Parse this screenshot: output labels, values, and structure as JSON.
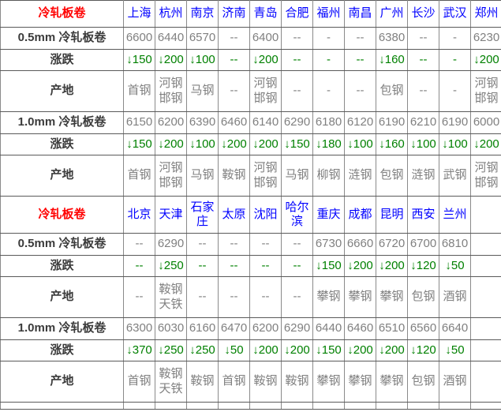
{
  "colors": {
    "section_title_red": "#ff0000",
    "city_link_blue": "#0000ff",
    "change_green": "#008000",
    "value_gray": "#808080"
  },
  "sections": [
    {
      "title": "冷轧板卷",
      "cities": [
        "上海",
        "杭州",
        "南京",
        "济南",
        "青岛",
        "合肥",
        "福州",
        "南昌",
        "广州",
        "长沙",
        "武汉",
        "郑州"
      ],
      "rows": [
        {
          "label": "0.5mm 冷轧板卷",
          "type": "price",
          "values": [
            "6600",
            "6440",
            "6570",
            "--",
            "6400",
            "--",
            "-",
            "--",
            "6380",
            "--",
            "-",
            "6230"
          ]
        },
        {
          "label": "涨跌",
          "type": "change",
          "values": [
            "↓150",
            "↓200",
            "↓100",
            "--",
            "↓200",
            "--",
            "-",
            "--",
            "↓160",
            "--",
            "-",
            "↓200"
          ]
        },
        {
          "label": "产地",
          "type": "origin",
          "values": [
            "首钢",
            "河钢邯钢",
            "马钢",
            "--",
            "河钢邯钢",
            "--",
            "-",
            "--",
            "包钢",
            "--",
            "-",
            "河钢邯钢"
          ]
        },
        {
          "label": "1.0mm 冷轧板卷",
          "type": "price",
          "values": [
            "6150",
            "6200",
            "6390",
            "6460",
            "6140",
            "6290",
            "6180",
            "6120",
            "6190",
            "6210",
            "6190",
            "6000"
          ]
        },
        {
          "label": "涨跌",
          "type": "change",
          "values": [
            "↓150",
            "↓200",
            "↓100",
            "↓200",
            "↓200",
            "↓150",
            "↓180",
            "↓100",
            "↓160",
            "↓100",
            "↓100",
            "↓200"
          ]
        },
        {
          "label": "产地",
          "type": "origin",
          "values": [
            "首钢",
            "河钢邯钢",
            "马钢",
            "鞍钢",
            "河钢邯钢",
            "马钢",
            "柳钢",
            "涟钢",
            "包钢",
            "涟钢",
            "武钢",
            "河钢邯钢"
          ]
        }
      ]
    },
    {
      "title": "冷轧板卷",
      "cities": [
        "北京",
        "天津",
        "石家庄",
        "太原",
        "沈阳",
        "哈尔滨",
        "重庆",
        "成都",
        "昆明",
        "西安",
        "兰州",
        ""
      ],
      "rows": [
        {
          "label": "0.5mm 冷轧板卷",
          "type": "price",
          "values": [
            "--",
            "6290",
            "--",
            "--",
            "--",
            "--",
            "6730",
            "6660",
            "6720",
            "6700",
            "6810",
            ""
          ]
        },
        {
          "label": "涨跌",
          "type": "change",
          "values": [
            "--",
            "↓250",
            "--",
            "--",
            "--",
            "--",
            "↓150",
            "↓200",
            "↓200",
            "↓120",
            "↓50",
            ""
          ]
        },
        {
          "label": "产地",
          "type": "origin",
          "values": [
            "--",
            "鞍钢天铁",
            "--",
            "--",
            "--",
            "--",
            "攀钢",
            "攀钢",
            "攀钢",
            "包钢",
            "酒钢",
            ""
          ]
        },
        {
          "label": "1.0mm 冷轧板卷",
          "type": "price",
          "values": [
            "6300",
            "6030",
            "6160",
            "6470",
            "6200",
            "6290",
            "6440",
            "6460",
            "6510",
            "6560",
            "6640",
            ""
          ]
        },
        {
          "label": "涨跌",
          "type": "change",
          "values": [
            "↓370",
            "↓250",
            "↓250",
            "↓50",
            "↓200",
            "↓200",
            "↓150",
            "↓200",
            "↓200",
            "↓120",
            "↓50",
            ""
          ]
        },
        {
          "label": "产地",
          "type": "origin",
          "values": [
            "首钢",
            "鞍钢天铁",
            "鞍钢",
            "首钢",
            "鞍钢",
            "鞍钢",
            "攀钢",
            "攀钢",
            "攀钢",
            "包钢",
            "酒钢",
            ""
          ]
        }
      ]
    }
  ]
}
